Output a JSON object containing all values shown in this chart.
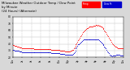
{
  "title_line1": "Milwaukee Weather Outdoor Temp / Dew Point",
  "title_line2": "by Minute",
  "title_line3": "(24 Hours) (Alternate)",
  "title_fontsize": 2.8,
  "bg_color": "#d8d8d8",
  "plot_bg_color": "#ffffff",
  "temp_color": "#ff0000",
  "dew_color": "#0000cc",
  "ylim": [
    20,
    80
  ],
  "yticks": [
    20,
    30,
    40,
    50,
    60,
    70,
    80
  ],
  "grid_color": "#bbbbbb",
  "dot_size": 0.4,
  "temp_data_x": [
    0,
    1,
    2,
    3,
    4,
    5,
    6,
    7,
    8,
    9,
    10,
    11,
    12,
    13,
    14,
    15,
    16,
    17,
    18,
    19,
    20,
    21,
    22,
    23,
    24,
    25,
    26,
    27,
    28,
    29,
    30,
    31,
    32,
    33,
    34,
    35,
    36,
    37,
    38,
    39,
    40,
    41,
    42,
    43,
    44,
    45,
    46,
    47,
    48,
    49,
    50,
    51,
    52,
    53,
    54,
    55,
    56,
    57,
    58,
    59,
    60,
    61,
    62,
    63,
    64,
    65,
    66,
    67,
    68,
    69,
    70,
    71,
    72,
    73,
    74,
    75,
    76,
    77,
    78,
    79,
    80,
    81,
    82,
    83,
    84,
    85,
    86,
    87,
    88,
    89,
    90,
    91,
    92,
    93,
    94,
    95,
    96,
    97,
    98,
    99,
    100,
    101,
    102,
    103,
    104,
    105,
    106,
    107,
    108,
    109,
    110,
    111,
    112,
    113,
    114,
    115,
    116,
    117,
    118,
    119,
    120,
    121,
    122,
    123,
    124,
    125,
    126,
    127,
    128,
    129,
    130,
    131,
    132,
    133,
    134,
    135,
    136,
    137,
    138,
    139,
    140,
    141,
    142,
    143
  ],
  "temp_data_y": [
    38,
    38,
    37,
    37,
    37,
    36,
    36,
    36,
    35,
    35,
    35,
    35,
    34,
    34,
    34,
    34,
    34,
    33,
    33,
    33,
    33,
    33,
    33,
    33,
    33,
    33,
    33,
    32,
    32,
    32,
    32,
    32,
    32,
    32,
    32,
    32,
    32,
    32,
    32,
    32,
    32,
    32,
    32,
    32,
    32,
    32,
    32,
    32,
    32,
    32,
    31,
    31,
    31,
    31,
    31,
    31,
    31,
    31,
    31,
    31,
    31,
    30,
    30,
    30,
    30,
    30,
    30,
    30,
    29,
    29,
    29,
    29,
    29,
    29,
    29,
    30,
    30,
    31,
    31,
    33,
    35,
    37,
    39,
    41,
    43,
    45,
    47,
    49,
    51,
    53,
    55,
    57,
    59,
    60,
    61,
    62,
    63,
    63,
    64,
    65,
    65,
    66,
    66,
    66,
    66,
    67,
    67,
    67,
    68,
    68,
    67,
    68,
    67,
    67,
    66,
    65,
    64,
    63,
    62,
    60,
    59,
    57,
    55,
    53,
    51,
    49,
    47,
    45,
    43,
    41,
    39,
    38,
    37,
    36,
    36,
    35,
    35,
    34,
    34,
    34,
    33,
    33,
    33,
    33
  ],
  "dew_data_x": [
    0,
    1,
    2,
    3,
    4,
    5,
    6,
    7,
    8,
    9,
    10,
    11,
    12,
    13,
    14,
    15,
    16,
    17,
    18,
    19,
    20,
    21,
    22,
    23,
    24,
    25,
    26,
    27,
    28,
    29,
    30,
    31,
    32,
    33,
    34,
    35,
    36,
    37,
    38,
    39,
    40,
    41,
    42,
    43,
    44,
    45,
    46,
    47,
    48,
    49,
    50,
    51,
    52,
    53,
    54,
    55,
    56,
    57,
    58,
    59,
    60,
    61,
    62,
    63,
    64,
    65,
    66,
    67,
    68,
    69,
    70,
    71,
    72,
    73,
    74,
    75,
    76,
    77,
    78,
    79,
    80,
    81,
    82,
    83,
    84,
    85,
    86,
    87,
    88,
    89,
    90,
    91,
    92,
    93,
    94,
    95,
    96,
    97,
    98,
    99,
    100,
    101,
    102,
    103,
    104,
    105,
    106,
    107,
    108,
    109,
    110,
    111,
    112,
    113,
    114,
    115,
    116,
    117,
    118,
    119,
    120,
    121,
    122,
    123,
    124,
    125,
    126,
    127,
    128,
    129,
    130,
    131,
    132,
    133,
    134,
    135,
    136,
    137,
    138,
    139,
    140,
    141,
    142,
    143
  ],
  "dew_data_y": [
    31,
    31,
    30,
    30,
    30,
    30,
    30,
    30,
    29,
    29,
    29,
    29,
    28,
    28,
    28,
    28,
    28,
    27,
    27,
    27,
    27,
    27,
    27,
    27,
    27,
    27,
    27,
    27,
    27,
    27,
    27,
    27,
    27,
    27,
    27,
    27,
    27,
    27,
    27,
    27,
    27,
    27,
    27,
    27,
    27,
    27,
    27,
    27,
    27,
    27,
    26,
    26,
    26,
    26,
    26,
    26,
    26,
    26,
    26,
    26,
    26,
    25,
    25,
    25,
    25,
    25,
    25,
    25,
    24,
    24,
    24,
    24,
    24,
    24,
    24,
    24,
    24,
    24,
    25,
    26,
    28,
    30,
    33,
    35,
    37,
    39,
    40,
    41,
    42,
    43,
    44,
    45,
    46,
    46,
    46,
    46,
    47,
    47,
    47,
    47,
    47,
    47,
    47,
    47,
    47,
    47,
    47,
    47,
    47,
    47,
    46,
    46,
    45,
    44,
    43,
    42,
    41,
    40,
    38,
    36,
    35,
    33,
    31,
    29,
    27,
    26,
    24,
    23,
    23,
    22,
    23,
    23,
    23,
    23,
    24,
    24,
    24,
    24,
    24,
    24,
    23,
    23,
    23,
    23
  ],
  "xtick_labels": [
    "12a",
    "2a",
    "4a",
    "6a",
    "8a",
    "10a",
    "12p",
    "2p",
    "4p",
    "6p",
    "8p",
    "10p",
    "12a"
  ],
  "xtick_positions": [
    0,
    12,
    24,
    36,
    48,
    60,
    72,
    84,
    96,
    108,
    120,
    132,
    144
  ],
  "legend_temp_label": "Temp",
  "legend_dew_label": "Dew Pt"
}
